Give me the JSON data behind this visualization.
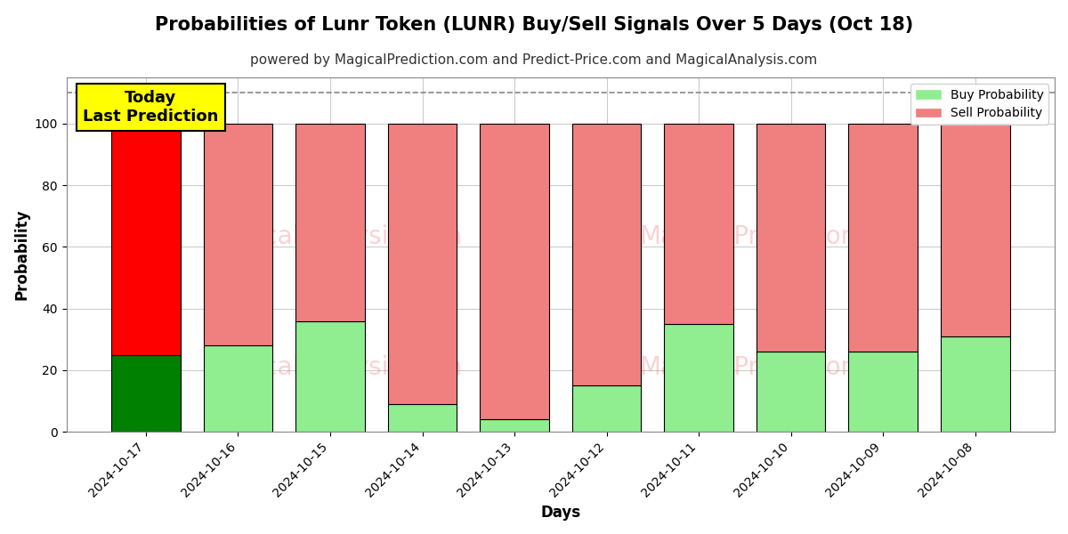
{
  "title": "Probabilities of Lunr Token (LUNR) Buy/Sell Signals Over 5 Days (Oct 18)",
  "subtitle": "powered by MagicalPrediction.com and Predict-Price.com and MagicalAnalysis.com",
  "xlabel": "Days",
  "ylabel": "Probability",
  "categories": [
    "2024-10-17",
    "2024-10-16",
    "2024-10-15",
    "2024-10-14",
    "2024-10-13",
    "2024-10-12",
    "2024-10-11",
    "2024-10-10",
    "2024-10-09",
    "2024-10-08"
  ],
  "buy_values": [
    25,
    28,
    36,
    9,
    4,
    15,
    35,
    26,
    26,
    31
  ],
  "sell_values": [
    75,
    72,
    64,
    91,
    96,
    85,
    65,
    74,
    74,
    69
  ],
  "today_bar_index": 0,
  "today_buy_color": "#008000",
  "today_sell_color": "#ff0000",
  "other_buy_color": "#90EE90",
  "other_sell_color": "#f08080",
  "bar_edge_color": "#000000",
  "bar_width": 0.75,
  "ylim": [
    0,
    115
  ],
  "yticks": [
    0,
    20,
    40,
    60,
    80,
    100
  ],
  "dashed_line_y": 110,
  "dashed_line_color": "#888888",
  "grid_color": "#cccccc",
  "background_color": "#ffffff",
  "watermark_color": "#f08080",
  "watermark_alpha": 0.35,
  "today_label": "Today\nLast Prediction",
  "today_label_bg": "#ffff00",
  "legend_buy_label": "Buy Probability",
  "legend_sell_label": "Sell Probability",
  "title_fontsize": 15,
  "subtitle_fontsize": 11,
  "axis_label_fontsize": 12,
  "tick_fontsize": 10
}
